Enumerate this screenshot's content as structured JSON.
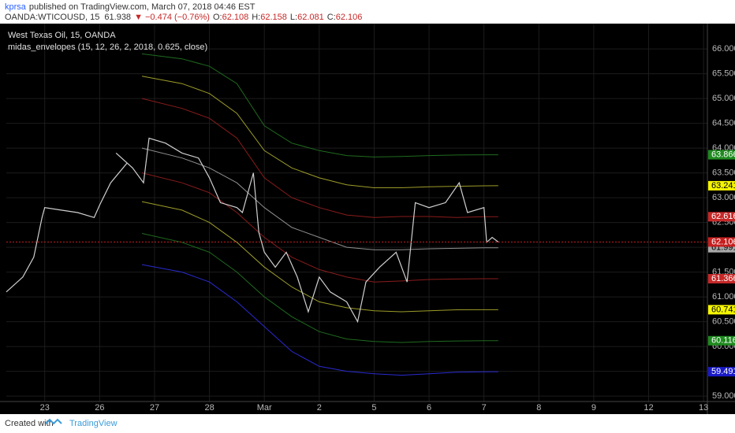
{
  "header": {
    "author": "kprsa",
    "published": "published on TradingView.com, March 07, 2018 04:46 EST",
    "symbol": "OANDA:WTICOUSD, 15",
    "last": "61.938",
    "change": "▼ −0.474 (−0.76%)",
    "ohlc": [
      {
        "key": "O:",
        "value": "62.108"
      },
      {
        "key": "H:",
        "value": "62.158"
      },
      {
        "key": "L:",
        "value": "62.081"
      },
      {
        "key": "C:",
        "value": "62.106"
      }
    ]
  },
  "chart_data": {
    "type": "line",
    "title": "West Texas Oil, 15, OANDA",
    "subtitle": "midas_envelopes (15, 12, 26, 2, 2018, 0.625, close)",
    "grid": true,
    "xlim": [
      -0.7,
      12.07
    ],
    "xticks": [
      {
        "value": 0,
        "label": "23"
      },
      {
        "value": 1,
        "label": "26"
      },
      {
        "value": 2,
        "label": "27"
      },
      {
        "value": 3,
        "label": "28"
      },
      {
        "value": 4,
        "label": "Mar"
      },
      {
        "value": 5,
        "label": "2"
      },
      {
        "value": 6,
        "label": "5"
      },
      {
        "value": 7,
        "label": "6"
      },
      {
        "value": 8,
        "label": "7"
      },
      {
        "value": 9,
        "label": "8"
      },
      {
        "value": 10,
        "label": "9"
      },
      {
        "value": 11,
        "label": "12"
      },
      {
        "value": 12,
        "label": "13"
      }
    ],
    "ylim": [
      58.89,
      66.51
    ],
    "yticks": [
      {
        "value": 59,
        "label": "59.000"
      },
      {
        "value": 59.5,
        "label": "59.500"
      },
      {
        "value": 60,
        "label": "60.000"
      },
      {
        "value": 60.5,
        "label": "60.500"
      },
      {
        "value": 61,
        "label": "61.000"
      },
      {
        "value": 61.5,
        "label": "61.500"
      },
      {
        "value": 62,
        "label": "62.000"
      },
      {
        "value": 62.5,
        "label": "62.500"
      },
      {
        "value": 63,
        "label": "63.000"
      },
      {
        "value": 63.5,
        "label": "63.500"
      },
      {
        "value": 64,
        "label": "64.000"
      },
      {
        "value": 64.5,
        "label": "64.500"
      },
      {
        "value": 65,
        "label": "65.000"
      },
      {
        "value": 65.5,
        "label": "65.500"
      },
      {
        "value": 66,
        "label": "66.000"
      }
    ],
    "x": [
      1.77,
      2.5,
      3.0,
      3.5,
      4.0,
      4.5,
      5.0,
      5.5,
      6.0,
      6.5,
      7.0,
      7.5,
      8.0,
      8.26
    ],
    "series": [
      {
        "color": "#1f6b1f",
        "tag_text": "#ffffff",
        "tag_color": "#1f8a1f",
        "values": [
          65.9,
          65.8,
          65.65,
          65.3,
          64.45,
          64.1,
          63.95,
          63.85,
          63.82,
          63.83,
          63.85,
          63.86,
          63.866,
          63.866
        ]
      },
      {
        "color": "#9c9c2a",
        "tag_text": "#000000",
        "tag_color": "#f5f500",
        "values": [
          65.45,
          65.3,
          65.1,
          64.7,
          63.95,
          63.6,
          63.4,
          63.26,
          63.2,
          63.2,
          63.22,
          63.23,
          63.24,
          63.241
        ]
      },
      {
        "color": "#8a1c1c",
        "tag_text": "#ffffff",
        "tag_color": "#c62828",
        "values": [
          65.0,
          64.8,
          64.6,
          64.2,
          63.4,
          63.0,
          62.8,
          62.65,
          62.6,
          62.62,
          62.62,
          62.6,
          62.616,
          62.616
        ]
      },
      {
        "color": "#8e8e8e",
        "tag_text": "#000000",
        "tag_color": "#a8a8a8",
        "values": [
          64.0,
          63.8,
          63.6,
          63.3,
          62.8,
          62.4,
          62.2,
          62.0,
          61.95,
          61.95,
          61.97,
          61.98,
          61.99,
          61.991
        ]
      },
      {
        "color": "#8a1c1c",
        "tag_text": "#ffffff",
        "tag_color": "#c62828",
        "values": [
          63.5,
          63.3,
          63.1,
          62.7,
          62.2,
          61.8,
          61.55,
          61.4,
          61.3,
          61.32,
          61.35,
          61.36,
          61.366,
          61.366
        ]
      },
      {
        "color": "#9c9c2a",
        "tag_text": "#000000",
        "tag_color": "#f5f500",
        "values": [
          62.92,
          62.75,
          62.5,
          62.1,
          61.6,
          61.2,
          60.9,
          60.78,
          60.72,
          60.7,
          60.72,
          60.74,
          60.741,
          60.741
        ]
      },
      {
        "color": "#1f6b1f",
        "tag_text": "#ffffff",
        "tag_color": "#1f8a1f",
        "values": [
          62.28,
          62.1,
          61.9,
          61.5,
          61.0,
          60.6,
          60.3,
          60.15,
          60.1,
          60.08,
          60.1,
          60.11,
          60.116,
          60.116
        ]
      },
      {
        "color": "#2a2ad0",
        "tag_text": "#ffffff",
        "tag_color": "#1a1ac8",
        "values": [
          61.65,
          61.5,
          61.3,
          60.9,
          60.4,
          59.9,
          59.6,
          59.5,
          59.45,
          59.42,
          59.45,
          59.48,
          59.49,
          59.491
        ]
      },
      {
        "color": "#d0d0d0",
        "tag_text": "#ffffff",
        "tag_color": "#c71f1f",
        "price_line": "#c71f1f",
        "x": [
          -0.7,
          -0.4,
          -0.2,
          -0.05,
          0.0,
          0.3,
          0.6,
          0.9,
          1.0,
          1.2,
          1.5,
          1.3,
          1.6,
          1.8,
          1.9,
          2.2,
          2.5,
          2.8,
          3.0,
          3.2,
          3.5,
          3.6,
          3.8,
          3.9,
          4.0,
          4.2,
          4.4,
          4.6,
          4.8,
          5.0,
          5.2,
          5.5,
          5.7,
          5.85,
          6.1,
          6.4,
          6.6,
          6.75,
          7.0,
          7.3,
          7.55,
          7.7,
          8.0,
          8.05,
          8.15,
          8.26
        ],
        "values": [
          61.1,
          61.4,
          61.8,
          62.6,
          62.8,
          62.75,
          62.7,
          62.6,
          62.85,
          63.3,
          63.7,
          63.9,
          63.6,
          63.3,
          64.2,
          64.1,
          63.9,
          63.8,
          63.4,
          62.9,
          62.8,
          62.7,
          63.5,
          62.3,
          61.9,
          61.6,
          61.9,
          61.4,
          60.7,
          61.4,
          61.1,
          60.9,
          60.5,
          61.3,
          61.6,
          61.9,
          61.3,
          62.9,
          62.8,
          62.9,
          63.3,
          62.7,
          62.8,
          62.1,
          62.2,
          62.106
        ]
      }
    ]
  },
  "footer": {
    "created": "Created with",
    "brand": "TradingView"
  }
}
